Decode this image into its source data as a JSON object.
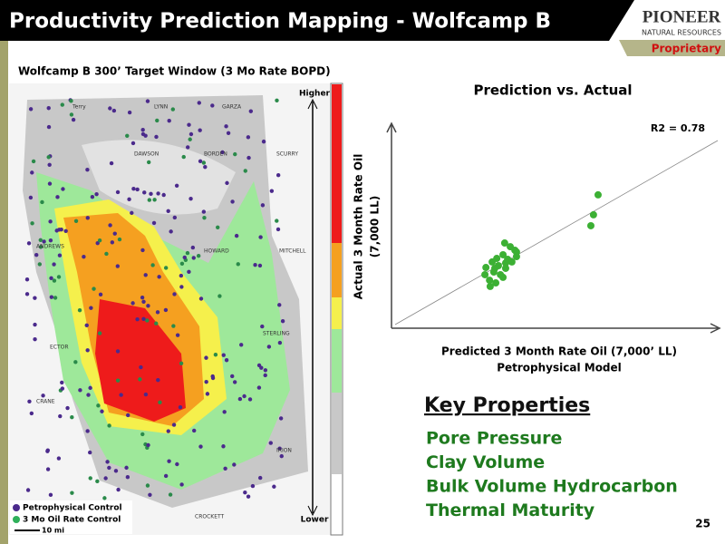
{
  "header": {
    "title": "Productivity Prediction Mapping - Wolfcamp B",
    "logo": "PIONEER",
    "logo_sub": "NATURAL RESOURCES",
    "tag": "Proprietary"
  },
  "map": {
    "title": "Wolfcamp B 300’ Target Window (3 Mo Rate BOPD)",
    "scale_high": "Higher",
    "scale_low": "Lower",
    "legend": [
      {
        "name": "Petrophysical Control",
        "color": "#4b2a8c"
      },
      {
        "name": "3 Mo Oil Rate Control",
        "color": "#2fb05a"
      }
    ],
    "scale_bar": "10 mi",
    "counties": [
      "Terry",
      "LYNN",
      "GARZA",
      "DAWSON",
      "BORDEN",
      "SCURRY",
      "ANDREWS",
      "HOWARD",
      "MITCHELL",
      "ECTOR",
      "STERLING",
      "CRANE",
      "CROCKETT",
      "IRION"
    ]
  },
  "chart_data": {
    "type": "scatter",
    "title": "Prediction vs. Actual",
    "x_label": [
      "Predicted 3 Month Rate Oil (7,000’ LL)",
      "Petrophysical Model"
    ],
    "y_label": [
      "Actual 3 Month Rate Oil",
      "(7,000 LL)"
    ],
    "annotation": "R2 = 0.78",
    "color": "#3cb034",
    "xlim": [
      0,
      100
    ],
    "ylim": [
      0,
      100
    ],
    "x": [
      62.8,
      61.4,
      60.6,
      34.4,
      36.1,
      37.5,
      38.0,
      33.9,
      32.0,
      35.3,
      30.6,
      36.6,
      28.7,
      32.5,
      34.7,
      31.1,
      33.1,
      28.4,
      29.8,
      33.9,
      31.7,
      30.0,
      34.7,
      38.0,
      31.4
    ],
    "y": [
      64.8,
      55.1,
      49.8,
      41.4,
      39.6,
      37.9,
      34.8,
      35.7,
      33.9,
      33.5,
      32.2,
      32.2,
      29.5,
      30.4,
      29.1,
      27.3,
      26.0,
      26.0,
      23.3,
      24.7,
      22.0,
      20.3,
      31.7,
      37.0,
      29.1
    ]
  },
  "key_properties": {
    "title": "Key Properties",
    "items": [
      "Pore Pressure",
      "Clay Volume",
      "Bulk Volume Hydrocarbon",
      "Thermal Maturity"
    ]
  },
  "page_number": "25"
}
